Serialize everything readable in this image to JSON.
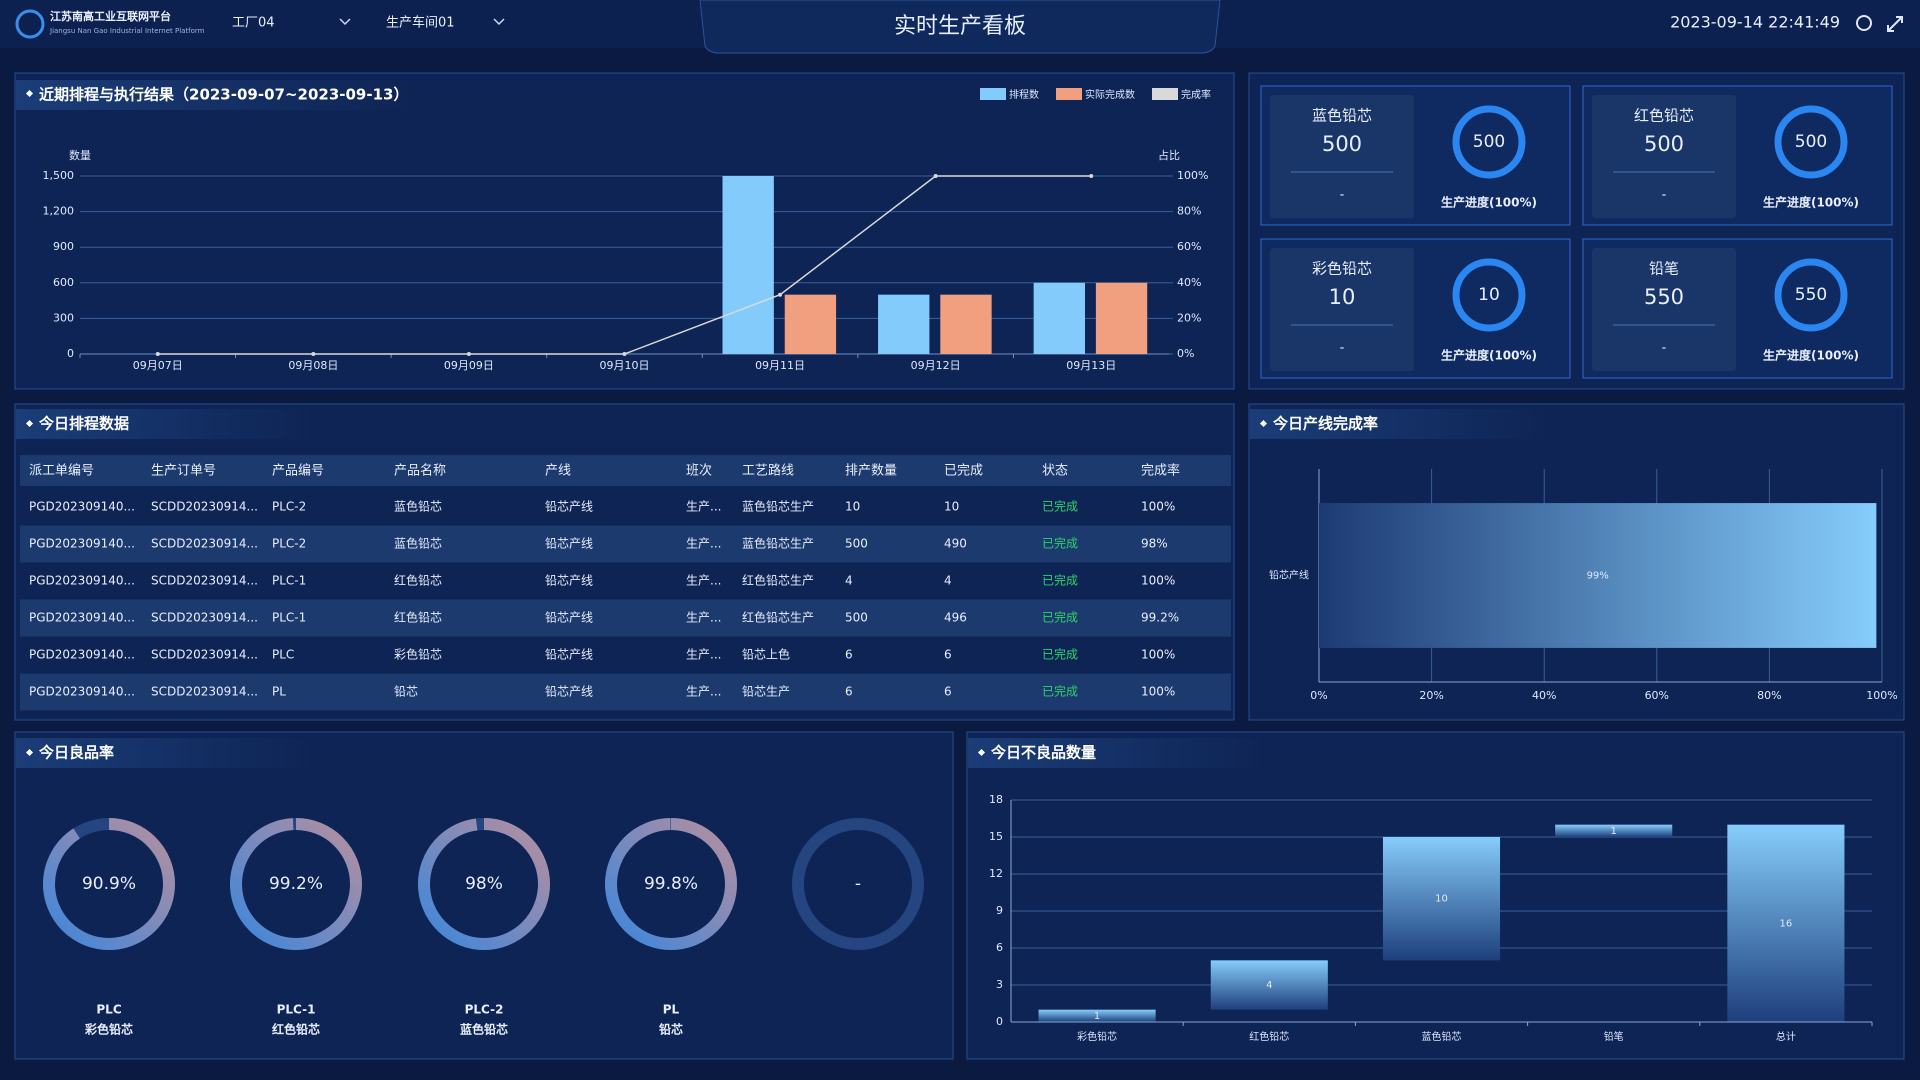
{
  "header": {
    "logo_title": "江苏南高工业互联网平台",
    "logo_subtitle": "Jiangsu Nan Gao Industrial Internet Platform",
    "factory": "工厂04",
    "workshop": "生产车间01",
    "title": "实时生产看板",
    "datetime": "2023-09-14 22:41:49"
  },
  "chart_data": [
    {
      "type": "bar",
      "title": "近期排程与执行结果（2023-09-07~2023-09-13）",
      "y_label": "数量",
      "y2_label": "占比",
      "categories": [
        "09月07日",
        "09月08日",
        "09月09日",
        "09月10日",
        "09月11日",
        "09月12日",
        "09月13日"
      ],
      "series": [
        {
          "name": "排程数",
          "color": "#82cbfa",
          "values": [
            0,
            0,
            0,
            0,
            1500,
            500,
            600
          ]
        },
        {
          "name": "实际完成数",
          "color": "#f1a07f",
          "values": [
            0,
            0,
            0,
            0,
            500,
            500,
            600
          ]
        },
        {
          "name": "完成率",
          "color": "#d9d9d9",
          "type": "line",
          "axis": "y2",
          "values": [
            0,
            0,
            0,
            0,
            33.3,
            100,
            100
          ]
        }
      ],
      "ylim": [
        0,
        1500
      ],
      "yticks": [
        0,
        300,
        600,
        900,
        {
          "value": 1200,
          "label": "1,200"
        },
        {
          "value": 1500,
          "label": "1,500"
        }
      ],
      "y2lim": [
        0,
        100
      ],
      "y2ticks": [
        {
          "value": 0,
          "label": "0%"
        },
        {
          "value": 20,
          "label": "20%"
        },
        {
          "value": 40,
          "label": "40%"
        },
        {
          "value": 60,
          "label": "60%"
        },
        {
          "value": 80,
          "label": "80%"
        },
        {
          "value": 100,
          "label": "100%"
        }
      ],
      "grid": true,
      "legend": "top-right"
    },
    {
      "type": "hbar",
      "title": "今日产线完成率",
      "categories": [
        "铅芯产线"
      ],
      "values": [
        99
      ],
      "value_labels": [
        "99%"
      ],
      "xlim": [
        0,
        100
      ],
      "xticks": [
        {
          "value": 0,
          "label": "0%"
        },
        {
          "value": 20,
          "label": "20%"
        },
        {
          "value": 40,
          "label": "40%"
        },
        {
          "value": 60,
          "label": "60%"
        },
        {
          "value": 80,
          "label": "80%"
        },
        {
          "value": 100,
          "label": "100%"
        }
      ],
      "grid": true
    },
    {
      "type": "waterfall",
      "title": "今日不良品数量",
      "categories": [
        "彩色铅芯",
        "红色铅芯",
        "蓝色铅芯",
        "铅笔",
        "总计"
      ],
      "values": [
        1,
        4,
        10,
        1,
        16
      ],
      "total_last": true,
      "ylim": [
        0,
        18
      ],
      "yticks": [
        0,
        3,
        6,
        9,
        12,
        15,
        18
      ],
      "grid": true
    }
  ],
  "cards": [
    {
      "name": "蓝色铅芯",
      "value": "500",
      "note": "-",
      "ring_value": "500",
      "progress_label": "生产进度(100%)"
    },
    {
      "name": "红色铅芯",
      "value": "500",
      "note": "-",
      "ring_value": "500",
      "progress_label": "生产进度(100%)"
    },
    {
      "name": "彩色铅芯",
      "value": "10",
      "note": "-",
      "ring_value": "10",
      "progress_label": "生产进度(100%)"
    },
    {
      "name": "铅笔",
      "value": "550",
      "note": "-",
      "ring_value": "550",
      "progress_label": "生产进度(100%)"
    }
  ],
  "table": {
    "title": "今日排程数据",
    "columns": [
      "派工单编号",
      "生产订单号",
      "产品编号",
      "产品名称",
      "产线",
      "班次",
      "工艺路线",
      "排产数量",
      "已完成",
      "状态",
      "完成率"
    ],
    "rows": [
      [
        "PGD202309140...",
        "SCDD20230914...",
        "PLC-2",
        "蓝色铅芯",
        "铅芯产线",
        "生产...",
        "蓝色铅芯生产",
        "10",
        "10",
        "已完成",
        "100%"
      ],
      [
        "PGD202309140...",
        "SCDD20230914...",
        "PLC-2",
        "蓝色铅芯",
        "铅芯产线",
        "生产...",
        "蓝色铅芯生产",
        "500",
        "490",
        "已完成",
        "98%"
      ],
      [
        "PGD202309140...",
        "SCDD20230914...",
        "PLC-1",
        "红色铅芯",
        "铅芯产线",
        "生产...",
        "红色铅芯生产",
        "4",
        "4",
        "已完成",
        "100%"
      ],
      [
        "PGD202309140...",
        "SCDD20230914...",
        "PLC-1",
        "红色铅芯",
        "铅芯产线",
        "生产...",
        "红色铅芯生产",
        "500",
        "496",
        "已完成",
        "99.2%"
      ],
      [
        "PGD202309140...",
        "SCDD20230914...",
        "PLC",
        "彩色铅芯",
        "铅芯产线",
        "生产...",
        "铅芯上色",
        "6",
        "6",
        "已完成",
        "100%"
      ],
      [
        "PGD202309140...",
        "SCDD20230914...",
        "PL",
        "铅芯",
        "铅芯产线",
        "生产...",
        "铅芯生产",
        "6",
        "6",
        "已完成",
        "100%"
      ]
    ]
  },
  "quality": {
    "title": "今日良品率",
    "items": [
      {
        "value": 90.9,
        "value_label": "90.9%",
        "code": "PLC",
        "name": "彩色铅芯"
      },
      {
        "value": 99.2,
        "value_label": "99.2%",
        "code": "PLC-1",
        "name": "红色铅芯"
      },
      {
        "value": 98,
        "value_label": "98%",
        "code": "PLC-2",
        "name": "蓝色铅芯"
      },
      {
        "value": 99.8,
        "value_label": "99.8%",
        "code": "PL",
        "name": "铅芯"
      },
      {
        "value": null,
        "value_label": "-"
      }
    ]
  }
}
